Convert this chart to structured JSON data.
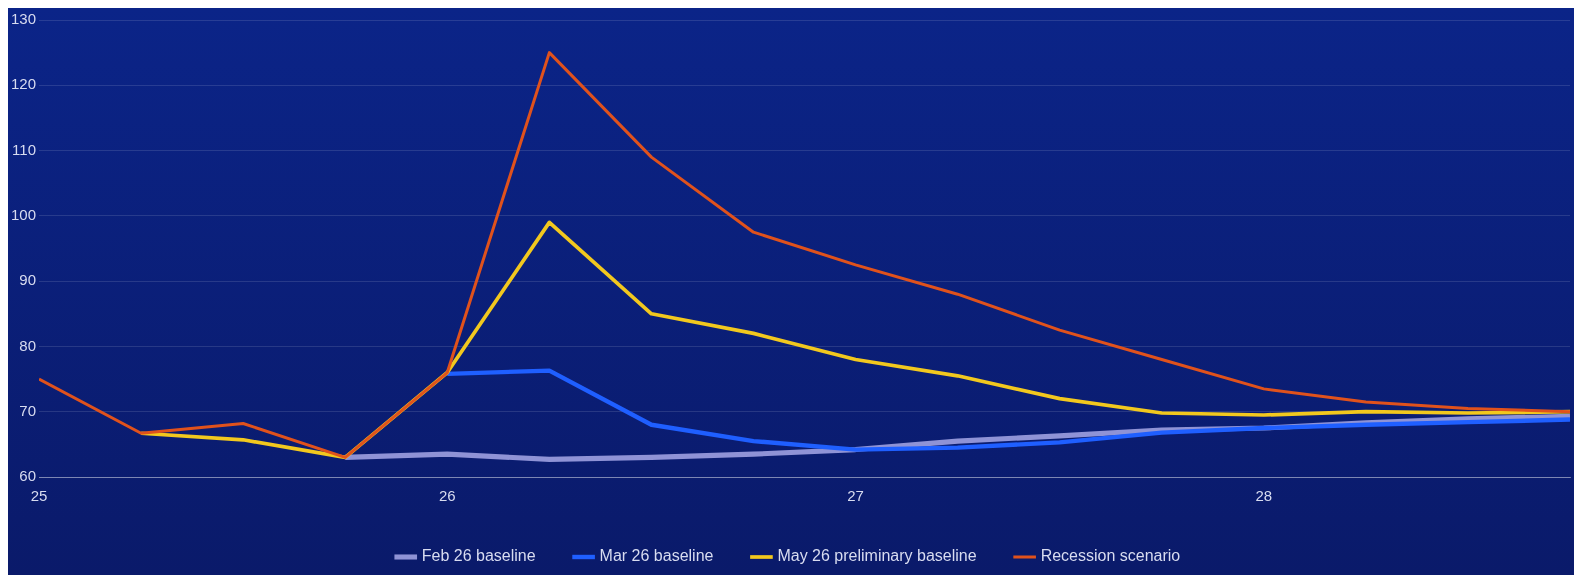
{
  "chart_data": {
    "type": "line",
    "x": [
      25,
      25.25,
      25.5,
      25.75,
      26,
      26.25,
      26.5,
      26.75,
      27,
      27.25,
      27.5,
      27.75,
      28,
      28.25,
      28.5,
      28.75
    ],
    "xlim": [
      25,
      28.75
    ],
    "xticks": [
      25,
      26,
      27,
      28
    ],
    "ylim": [
      60,
      130
    ],
    "yticks": [
      60,
      70,
      80,
      90,
      100,
      110,
      120,
      130
    ],
    "grid": "y",
    "legend": "bottom",
    "marker": "none",
    "line_style": "solid",
    "series": [
      {
        "name": "Feb 26 baseline",
        "color": "#8f93d6",
        "values": [
          null,
          null,
          null,
          63,
          63.5,
          62.7,
          63,
          63.5,
          64.2,
          65.5,
          66.3,
          67.2,
          67.5,
          68.3,
          68.9,
          69.3
        ]
      },
      {
        "name": "Mar 26 baseline",
        "color": "#1f5fff",
        "values": [
          null,
          null,
          null,
          null,
          75.8,
          76.3,
          68,
          65.5,
          64.2,
          64.5,
          65.3,
          66.8,
          67.5,
          68,
          68.4,
          68.8
        ]
      },
      {
        "name": "May 26 preliminary baseline",
        "color": "#f2c81e",
        "values": [
          null,
          66.7,
          65.7,
          63,
          76,
          99,
          85,
          82,
          78,
          75.5,
          72,
          69.8,
          69.5,
          70,
          69.8,
          70
        ]
      },
      {
        "name": "Recession scenario",
        "color": "#e0521c",
        "values": [
          75,
          66.7,
          68.2,
          63,
          76,
          125,
          109,
          97.5,
          92.5,
          88,
          82.5,
          78,
          73.5,
          71.5,
          70.5,
          70
        ]
      }
    ]
  }
}
